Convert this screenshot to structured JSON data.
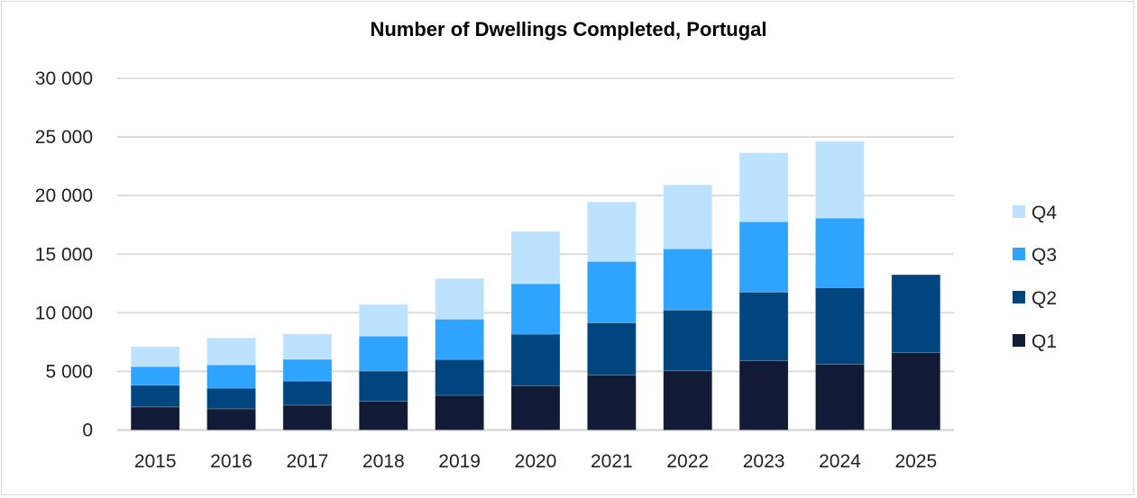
{
  "chart_data": {
    "type": "bar",
    "stacked": true,
    "title": "Number of Dwellings Completed, Portugal",
    "xlabel": "",
    "ylabel": "",
    "ylim": [
      0,
      30000
    ],
    "yticks": [
      0,
      5000,
      10000,
      15000,
      20000,
      25000,
      30000
    ],
    "ytick_labels": [
      "0",
      "5 000",
      "10 000",
      "15 000",
      "20 000",
      "25 000",
      "30 000"
    ],
    "grid": true,
    "legend_position": "right",
    "categories": [
      "2015",
      "2016",
      "2017",
      "2018",
      "2019",
      "2020",
      "2021",
      "2022",
      "2023",
      "2024",
      "2025"
    ],
    "series": [
      {
        "name": "Q1",
        "color": "#111b35",
        "values": [
          1970,
          1810,
          2120,
          2450,
          2960,
          3770,
          4690,
          5050,
          5920,
          5620,
          6620
        ]
      },
      {
        "name": "Q2",
        "color": "#00457d",
        "values": [
          1860,
          1760,
          2060,
          2580,
          3060,
          4410,
          4460,
          5180,
          5850,
          6530,
          6630
        ]
      },
      {
        "name": "Q3",
        "color": "#2fa4ff",
        "values": [
          1580,
          1990,
          1860,
          2980,
          3440,
          4300,
          5230,
          5230,
          6000,
          5930,
          null
        ]
      },
      {
        "name": "Q4",
        "color": "#bde2ff",
        "values": [
          1710,
          2300,
          2150,
          2700,
          3470,
          4470,
          5080,
          5460,
          5870,
          6560,
          null
        ]
      }
    ]
  }
}
